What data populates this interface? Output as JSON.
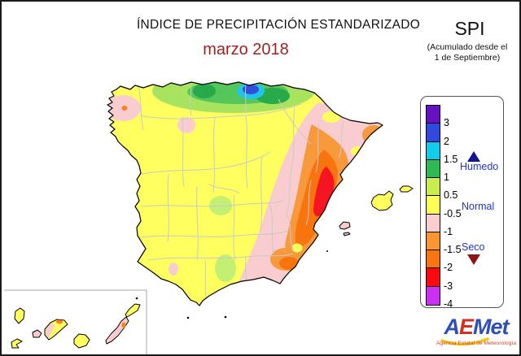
{
  "header": {
    "title": "ÍNDICE DE PRECIPITACIÓN ESTANDARIZADO",
    "period": "marzo 2018",
    "index_name": "SPI",
    "note_line1": "(Acumulado desde el",
    "note_line2": "1 de Septiembre)"
  },
  "legend": {
    "scale": [
      {
        "label": "3",
        "color": "#6612C4"
      },
      {
        "label": "2",
        "color": "#3348DE"
      },
      {
        "label": "1.5",
        "color": "#14CBEC"
      },
      {
        "label": "1",
        "color": "#2FB954"
      },
      {
        "label": "0.5",
        "color": "#C9EC4F"
      },
      {
        "label": "-0.5",
        "color": "#FFFF55"
      },
      {
        "label": "-1",
        "color": "#FBCDCE"
      },
      {
        "label": "-1.5",
        "color": "#FA9532"
      },
      {
        "label": "-2",
        "color": "#FB7412"
      },
      {
        "label": "-3",
        "color": "#F90A10"
      },
      {
        "label": "-4",
        "color": "#CB30F2"
      }
    ],
    "categories": {
      "humedo": {
        "label": "Humedo",
        "marker": "up-triangle",
        "marker_color": "#14148C"
      },
      "normal": {
        "label": "Normal"
      },
      "seco": {
        "label": "Seco",
        "marker": "down-triangle",
        "marker_color": "#8C1414"
      }
    },
    "category_label_color": "#2233CC"
  },
  "map": {
    "sea_color": "#FFFFFF",
    "land_default_color": "#FFFF60",
    "coastline_color": "#000000",
    "province_border_color": "#C9C9C9",
    "palette": {
      "wet_light_green": "#A7E35F",
      "wet_medium_green": "#55C65A",
      "wet_dark_green": "#28A94A",
      "wet_cyan": "#20C6E8",
      "wet_blue": "#3350DD",
      "dry_pink": "#F9CDCF",
      "dry_light_orange": "#F8993B",
      "dry_orange": "#F8740E",
      "dry_red": "#F51521",
      "dry_orange_dot": "#F8821E"
    }
  },
  "logo": {
    "brand_a": "A",
    "brand_e": "E",
    "brand_met": "Met",
    "caption": "Agencia Estatal de Meteorología"
  }
}
